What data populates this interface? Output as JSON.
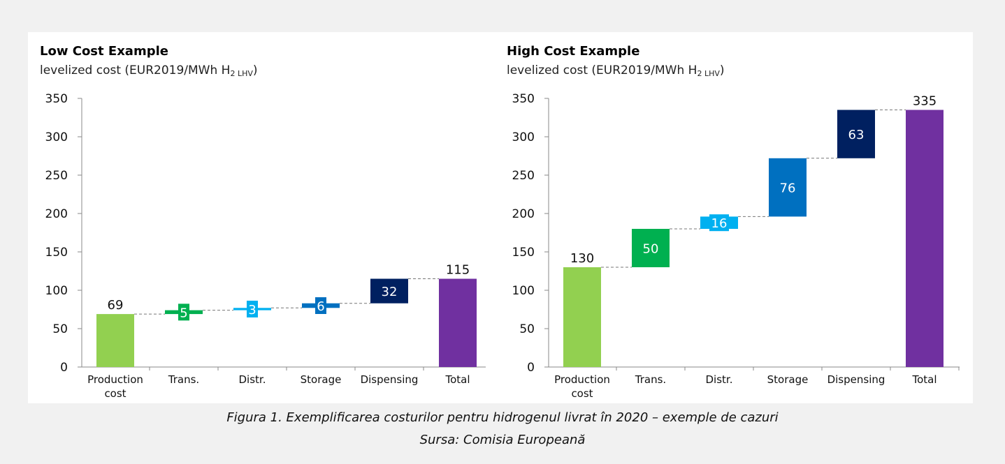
{
  "caption": {
    "line1": "Figura 1. Exemplificarea costurilor pentru hidrogenul livrat în 2020 – exemple de cazuri",
    "line2": "Sursa: Comisia Europeană"
  },
  "chart_data": [
    {
      "type": "waterfall",
      "title": "Low Cost Example",
      "subtitle_main": "levelized cost (EUR2019/MWh H",
      "subtitle_sub": "2 LHV",
      "subtitle_end": ")",
      "ylim": [
        0,
        350
      ],
      "yticks": [
        0,
        50,
        100,
        150,
        200,
        250,
        300,
        350
      ],
      "grid": false,
      "categories": [
        [
          "Production",
          "cost"
        ],
        [
          "Trans."
        ],
        [
          "Distr."
        ],
        [
          "Storage"
        ],
        [
          "Dispensing"
        ],
        [
          "Total"
        ]
      ],
      "bars": [
        {
          "base": 0,
          "value": 69,
          "label": "69",
          "color": "#92d050",
          "label_pos": "above",
          "label_color": "#111111"
        },
        {
          "base": 69,
          "value": 5,
          "label": "5",
          "color": "#00b050",
          "label_pos": "inside",
          "label_color": "#ffffff"
        },
        {
          "base": 74,
          "value": 3,
          "label": "3",
          "color": "#00b0f0",
          "label_pos": "inside",
          "label_color": "#ffffff"
        },
        {
          "base": 77,
          "value": 6,
          "label": "6",
          "color": "#0070c0",
          "label_pos": "inside",
          "label_color": "#ffffff"
        },
        {
          "base": 83,
          "value": 32,
          "label": "32",
          "color": "#002060",
          "label_pos": "inside",
          "label_color": "#ffffff"
        },
        {
          "base": 0,
          "value": 115,
          "label": "115",
          "color": "#7030a0",
          "label_pos": "above",
          "label_color": "#111111"
        }
      ]
    },
    {
      "type": "waterfall",
      "title": "High Cost Example",
      "subtitle_main": "levelized cost (EUR2019/MWh H",
      "subtitle_sub": "2 LHV",
      "subtitle_end": ")",
      "ylim": [
        0,
        350
      ],
      "yticks": [
        0,
        50,
        100,
        150,
        200,
        250,
        300,
        350
      ],
      "grid": false,
      "categories": [
        [
          "Production",
          "cost"
        ],
        [
          "Trans."
        ],
        [
          "Distr."
        ],
        [
          "Storage"
        ],
        [
          "Dispensing"
        ],
        [
          "Total"
        ]
      ],
      "bars": [
        {
          "base": 0,
          "value": 130,
          "label": "130",
          "color": "#92d050",
          "label_pos": "above",
          "label_color": "#111111"
        },
        {
          "base": 130,
          "value": 50,
          "label": "50",
          "color": "#00b050",
          "label_pos": "inside",
          "label_color": "#ffffff"
        },
        {
          "base": 180,
          "value": 16,
          "label": "16",
          "color": "#00b0f0",
          "label_pos": "inside",
          "label_color": "#ffffff"
        },
        {
          "base": 196,
          "value": 76,
          "label": "76",
          "color": "#0070c0",
          "label_pos": "inside",
          "label_color": "#ffffff"
        },
        {
          "base": 272,
          "value": 63,
          "label": "63",
          "color": "#002060",
          "label_pos": "inside",
          "label_color": "#ffffff"
        },
        {
          "base": 0,
          "value": 335,
          "label": "335",
          "color": "#7030a0",
          "label_pos": "above",
          "label_color": "#111111"
        }
      ]
    }
  ]
}
